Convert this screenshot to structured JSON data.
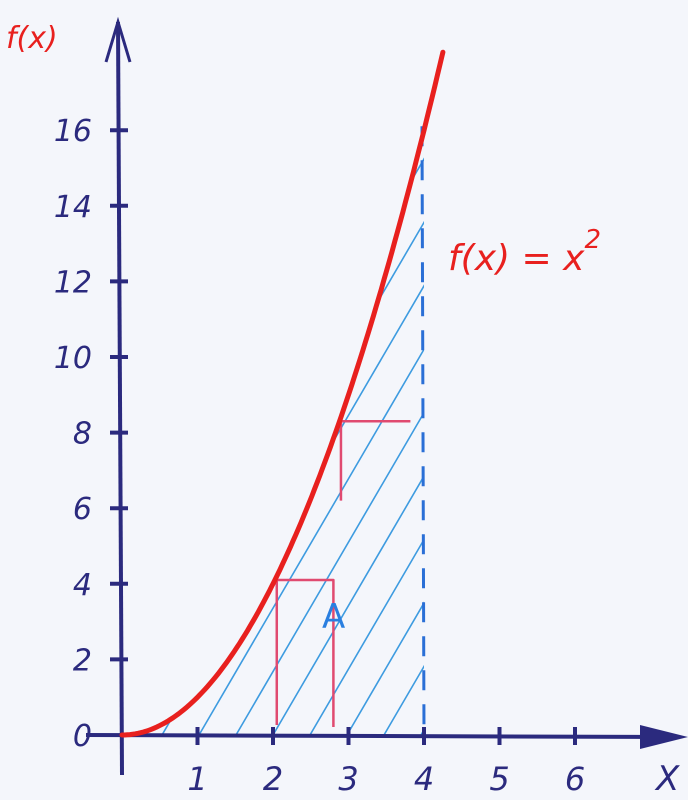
{
  "chart_data": {
    "type": "area",
    "xlabel": "X",
    "ylabel": "f(x)",
    "xticks": [
      "1",
      "2",
      "3",
      "4",
      "5",
      "6"
    ],
    "yticks": [
      "0",
      "2",
      "4",
      "6",
      "8",
      "10",
      "12",
      "14",
      "16"
    ],
    "xlim": [
      0,
      7
    ],
    "ylim": [
      0,
      18
    ],
    "function_label": "f(x) = x",
    "function_exponent": "2",
    "area_label": "A",
    "shaded_interval": [
      0,
      4
    ],
    "series": [
      {
        "name": "f(x) = x²",
        "x": [
          0,
          0.5,
          1,
          1.5,
          2,
          2.5,
          3,
          3.5,
          4,
          4.25
        ],
        "y": [
          0,
          0.25,
          1,
          2.25,
          4,
          6.25,
          9,
          12.25,
          16,
          18
        ]
      }
    ],
    "colors": {
      "axis": "#2b2a7e",
      "curve": "#e8201e",
      "hatch": "#3d9be0",
      "dash": "#2a6fd6",
      "rect": "#e04a70",
      "area_label": "#2a7fe0"
    }
  }
}
